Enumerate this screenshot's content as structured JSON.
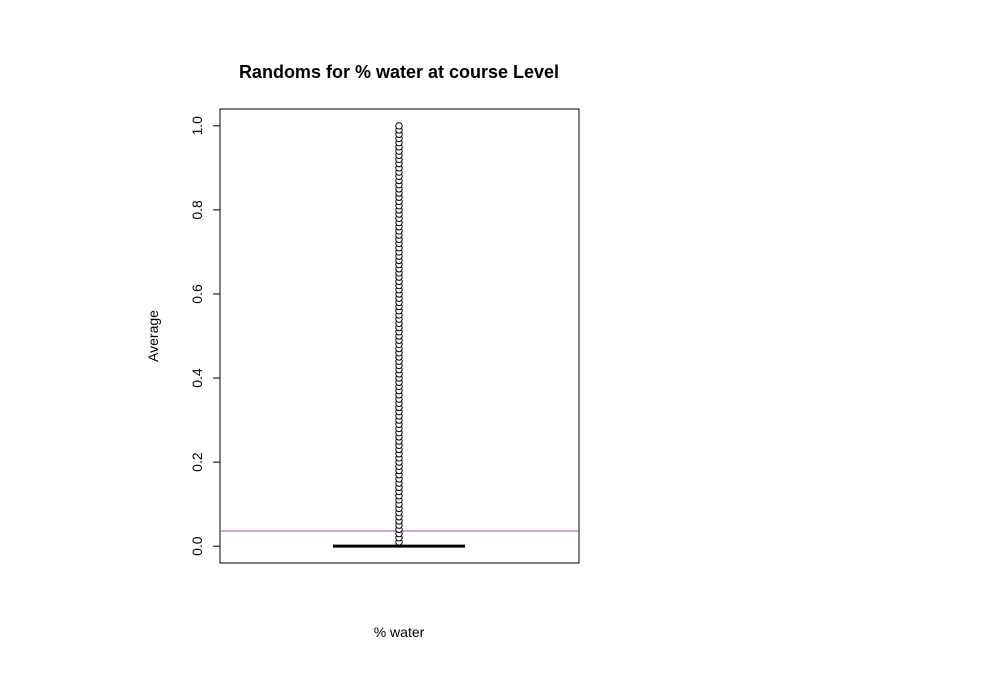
{
  "chart_data": {
    "type": "boxplot",
    "title": "Randoms for % water at course Level",
    "xlabel": "% water",
    "ylabel": "Average",
    "ylim": [
      -0.04,
      1.04
    ],
    "yticks": [
      0.0,
      0.2,
      0.4,
      0.6,
      0.8,
      1.0
    ],
    "ytick_labels": [
      "0.0",
      "0.2",
      "0.4",
      "0.6",
      "0.8",
      "1.0"
    ],
    "box": {
      "median": 0.0,
      "q1": 0.0,
      "q3": 0.0,
      "whisker_low": 0.0,
      "whisker_high": 0.0
    },
    "outliers": {
      "min": 0.01,
      "max": 1.0,
      "count": 100
    },
    "reference_line": {
      "y": 0.036,
      "color": "#b040b0"
    },
    "colors": {
      "axis": "#000000",
      "median": "#000000",
      "outlier_stroke": "#000000",
      "outlier_fill": "#ffffff"
    }
  }
}
